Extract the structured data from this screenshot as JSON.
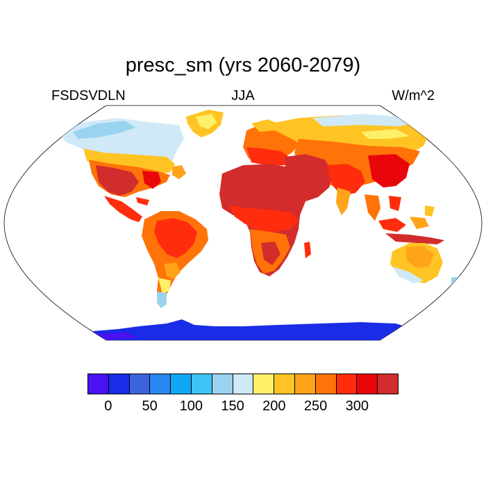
{
  "title": "presc_sm (yrs 2060-2079)",
  "subtitle_left": "FSDSVDLN",
  "subtitle_center": "JJA",
  "subtitle_right": "W/m^2",
  "colorbar": {
    "colors": [
      "#4a12f2",
      "#1a2ce6",
      "#3b64dd",
      "#2a86f0",
      "#10a8f6",
      "#3dc3f5",
      "#9ad3f0",
      "#cfe9f7",
      "#fff06a",
      "#ffc423",
      "#ffa319",
      "#ff7308",
      "#ff2d0d",
      "#e8060a",
      "#d22c2c"
    ],
    "labels": [
      "0",
      "50",
      "100",
      "150",
      "200",
      "250",
      "300"
    ]
  },
  "chart_data": {
    "type": "heatmap",
    "projection": "Robinson (global)",
    "variable": "FSDSVDLN",
    "season": "JJA",
    "units": "W/m^2",
    "period": "yrs 2060-2079",
    "levels": [
      0,
      50,
      100,
      150,
      200,
      250,
      300
    ],
    "regions": [
      {
        "name": "Sahara / Arabia / Middle East",
        "approx_value": 310
      },
      {
        "name": "Southwest US / Mexico",
        "approx_value": 300
      },
      {
        "name": "Central Asia",
        "approx_value": 260
      },
      {
        "name": "Amazon / tropics",
        "approx_value": 230
      },
      {
        "name": "Southern Africa",
        "approx_value": 250
      },
      {
        "name": "Australia",
        "approx_value": 190
      },
      {
        "name": "Boreal North America / Siberia",
        "approx_value": 170
      },
      {
        "name": "Greenland",
        "approx_value": 190
      },
      {
        "name": "Southern Patagonia",
        "approx_value": 100
      },
      {
        "name": "Antarctica",
        "approx_value": 25
      }
    ]
  }
}
